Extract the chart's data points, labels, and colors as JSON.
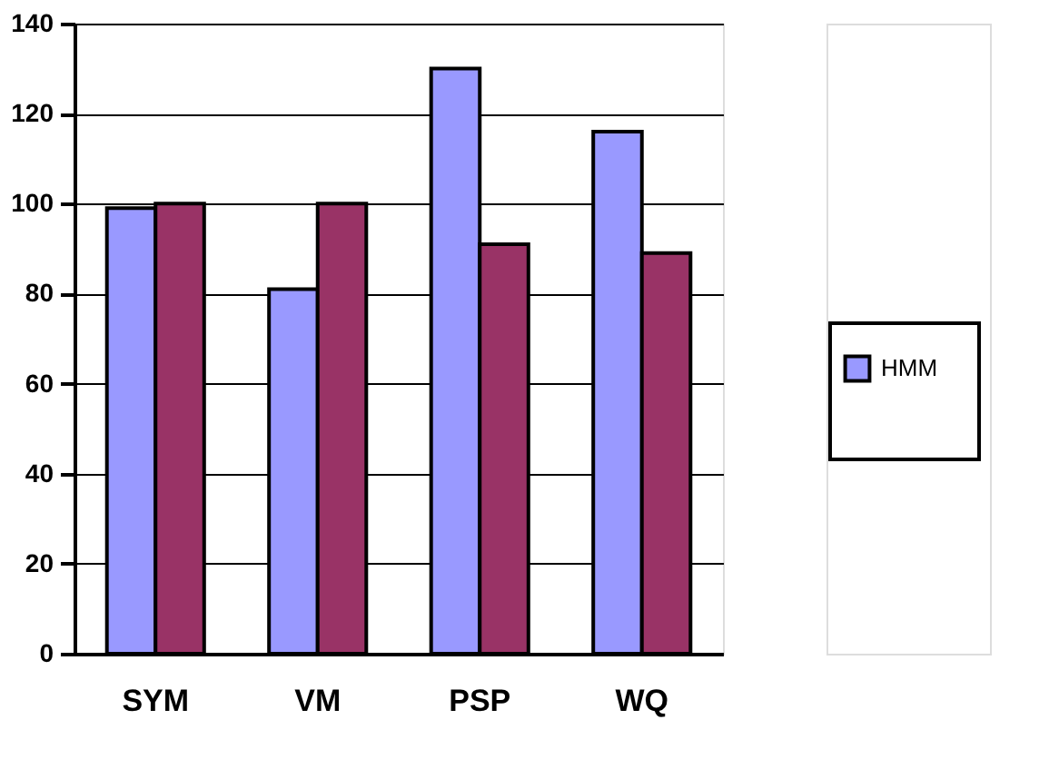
{
  "chart_data": {
    "type": "bar",
    "categories": [
      "SYM",
      "VM",
      "PSP",
      "WQ"
    ],
    "series": [
      {
        "name": "HMM",
        "color": "#9999ff",
        "values": [
          99,
          81,
          130,
          116
        ]
      },
      {
        "color": "#993366",
        "values": [
          100,
          100,
          91,
          89
        ]
      }
    ],
    "ylim": [
      0,
      140
    ],
    "yticks": [
      0,
      20,
      40,
      60,
      80,
      100,
      120,
      140
    ],
    "grid": "y",
    "legend": "right"
  }
}
